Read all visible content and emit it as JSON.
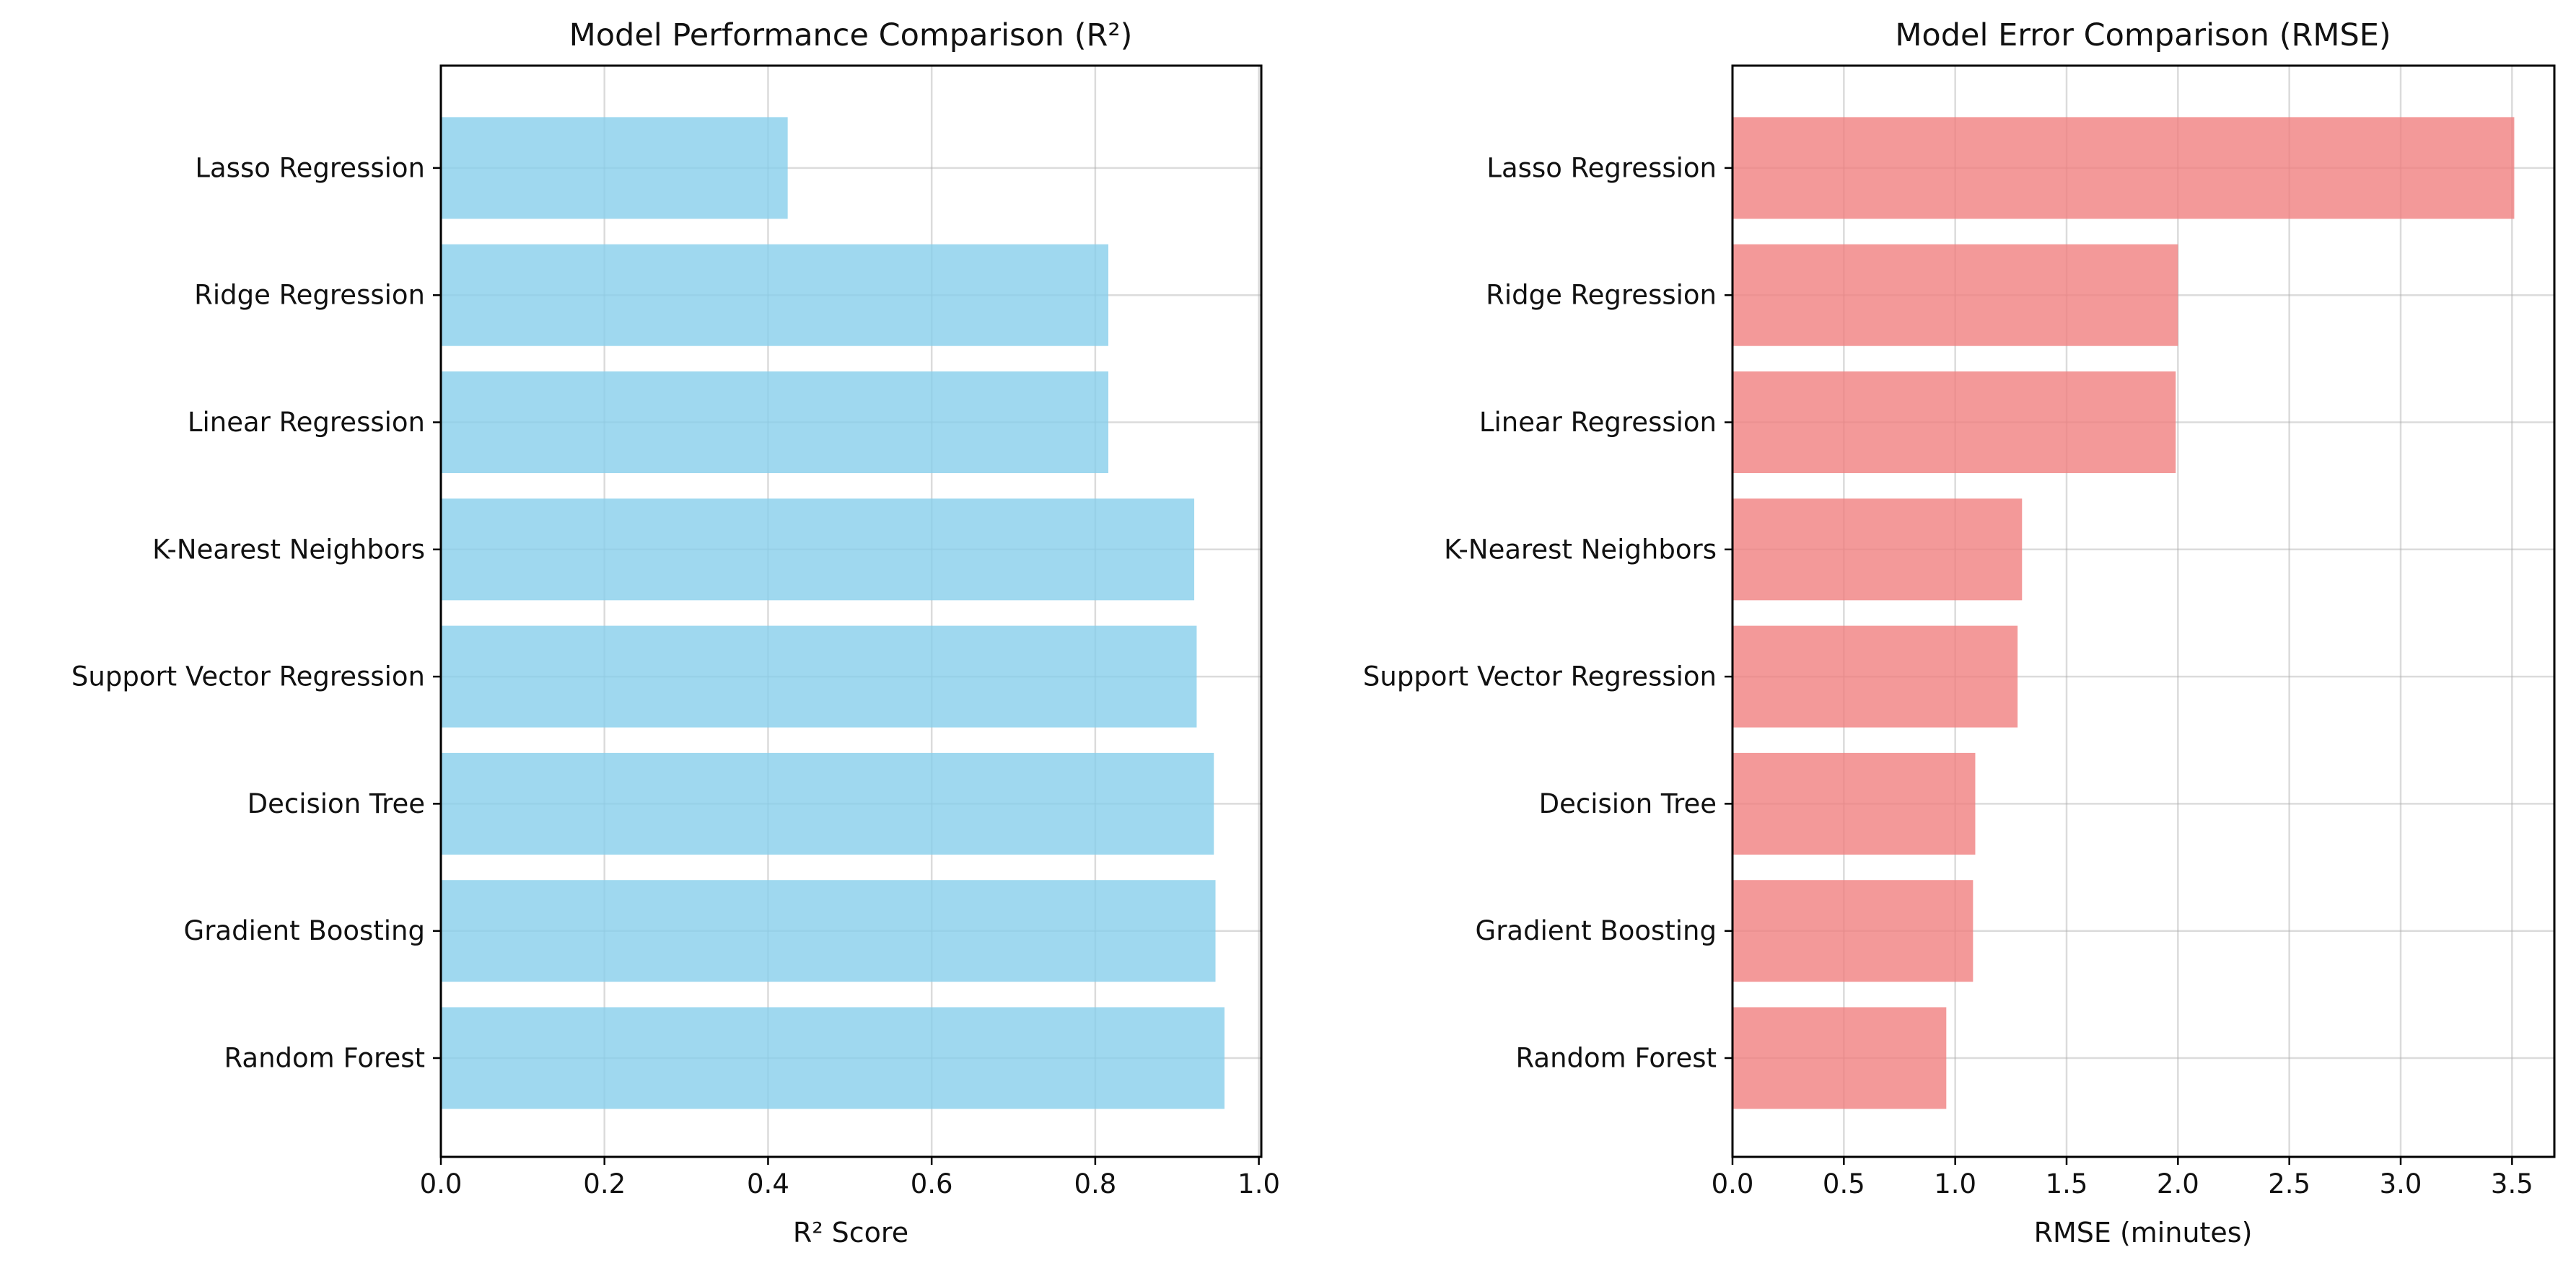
{
  "chart_data": [
    {
      "type": "bar",
      "orientation": "horizontal",
      "title": "Model Performance Comparison (R²)",
      "xlabel": "R² Score",
      "ylabel": "",
      "categories": [
        "Random Forest",
        "Gradient Boosting",
        "Decision Tree",
        "Support Vector Regression",
        "K-Nearest Neighbors",
        "Linear Regression",
        "Ridge Regression",
        "Lasso Regression"
      ],
      "values": [
        0.958,
        0.947,
        0.945,
        0.924,
        0.921,
        0.816,
        0.816,
        0.424
      ],
      "xlim": [
        0,
        1.003
      ],
      "xticks": [
        0.0,
        0.2,
        0.4,
        0.6,
        0.8,
        1.0
      ],
      "xtick_labels": [
        "0.0",
        "0.2",
        "0.4",
        "0.6",
        "0.8",
        "1.0"
      ],
      "color": "#87ceeb",
      "bar_alpha": 0.8,
      "grid": true
    },
    {
      "type": "bar",
      "orientation": "horizontal",
      "title": "Model Error Comparison (RMSE)",
      "xlabel": "RMSE (minutes)",
      "ylabel": "",
      "categories": [
        "Random Forest",
        "Gradient Boosting",
        "Decision Tree",
        "Support Vector Regression",
        "K-Nearest Neighbors",
        "Linear Regression",
        "Ridge Regression",
        "Lasso Regression"
      ],
      "values": [
        0.96,
        1.08,
        1.09,
        1.28,
        1.3,
        1.99,
        2.0,
        3.51
      ],
      "xlim": [
        0,
        3.69
      ],
      "xticks": [
        0.0,
        0.5,
        1.0,
        1.5,
        2.0,
        2.5,
        3.0,
        3.5
      ],
      "xtick_labels": [
        "0.0",
        "0.5",
        "1.0",
        "1.5",
        "2.0",
        "2.5",
        "3.0",
        "3.5"
      ],
      "color": "#f08080",
      "bar_alpha": 0.8,
      "grid": true
    }
  ]
}
